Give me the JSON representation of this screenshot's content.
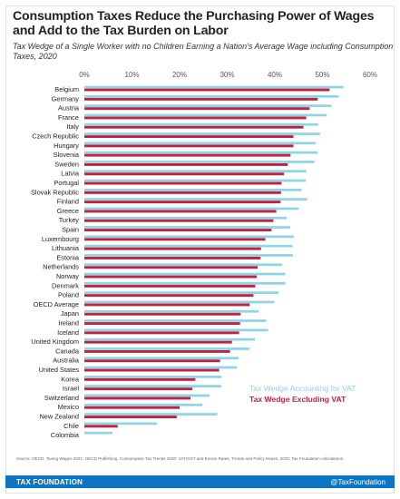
{
  "title": "Consumption Taxes Reduce the Purchasing Power of Wages and Add to the Tax Burden on Labor",
  "subtitle": "Tax Wedge of a Single Worker with no Children Earning a Nation's Average Wage including Consumption Taxes, 2020",
  "footnote": "Source: OECD, Taxing Wages 2021; OECD Publishing, Consumption Tax Trends 2020: VAT/GST and Excise Rates, Trends and Policy Issues, 2020; Tax Foundation calculations.",
  "footer": {
    "org": "TAX FOUNDATION",
    "handle": "@TaxFoundation",
    "bg_color": "#0f74c2"
  },
  "chart_data": {
    "type": "bar",
    "orientation": "horizontal",
    "title": "Consumption Taxes Reduce the Purchasing Power of Wages and Add to the Tax Burden on Labor",
    "subtitle": "Tax Wedge of a Single Worker with no Children Earning a Nation's Average Wage including Consumption Taxes, 2020",
    "xlim": [
      0,
      60
    ],
    "x_ticks": [
      "0%",
      "10%",
      "20%",
      "30%",
      "40%",
      "50%",
      "60%"
    ],
    "tick_values": [
      0,
      10,
      20,
      30,
      40,
      50,
      60
    ],
    "x_axis_position": "top",
    "grid": false,
    "legend_position": "bottom-right",
    "categories": [
      "Belgium",
      "Germany",
      "Austria",
      "France",
      "Italy",
      "Czech Republic",
      "Hungary",
      "Slovenia",
      "Sweden",
      "Latvia",
      "Portugal",
      "Slovak Republic",
      "Finland",
      "Greece",
      "Turkey",
      "Spain",
      "Luxembourg",
      "Lithuania",
      "Estonia",
      "Netherlands",
      "Norway",
      "Denmark",
      "Poland",
      "OECD Average",
      "Japan",
      "Ireland",
      "Iceland",
      "United Kingdom",
      "Canada",
      "Australia",
      "United States",
      "Korea",
      "Israel",
      "Switzerland",
      "Mexico",
      "New Zealand",
      "Chile",
      "Colombia"
    ],
    "series": [
      {
        "name": "Tax Wedge Accounting for VAT",
        "color": "#8ed3e6",
        "values": [
          54.4,
          53.4,
          51.9,
          50.9,
          49.1,
          49.5,
          48.6,
          49.0,
          48.3,
          46.6,
          46.5,
          45.6,
          46.8,
          45.0,
          42.5,
          43.2,
          44.0,
          43.7,
          43.8,
          41.5,
          42.2,
          42.2,
          40.8,
          39.9,
          36.6,
          38.2,
          38.6,
          35.8,
          34.7,
          32.4,
          32.0,
          28.8,
          28.8,
          26.3,
          24.8,
          27.9,
          15.2,
          5.9
        ]
      },
      {
        "name": "Tax Wedge Excluding VAT",
        "color": "#c1223d",
        "values": [
          51.5,
          49.0,
          47.3,
          46.6,
          46.0,
          43.9,
          43.9,
          43.3,
          42.7,
          41.9,
          41.4,
          41.3,
          41.2,
          40.3,
          39.7,
          39.3,
          38.0,
          37.1,
          37.0,
          36.4,
          36.2,
          35.9,
          35.5,
          34.7,
          32.8,
          32.7,
          32.5,
          31.0,
          30.6,
          28.5,
          28.3,
          23.3,
          22.7,
          22.3,
          20.0,
          19.4,
          7.0,
          0.0
        ]
      }
    ]
  }
}
